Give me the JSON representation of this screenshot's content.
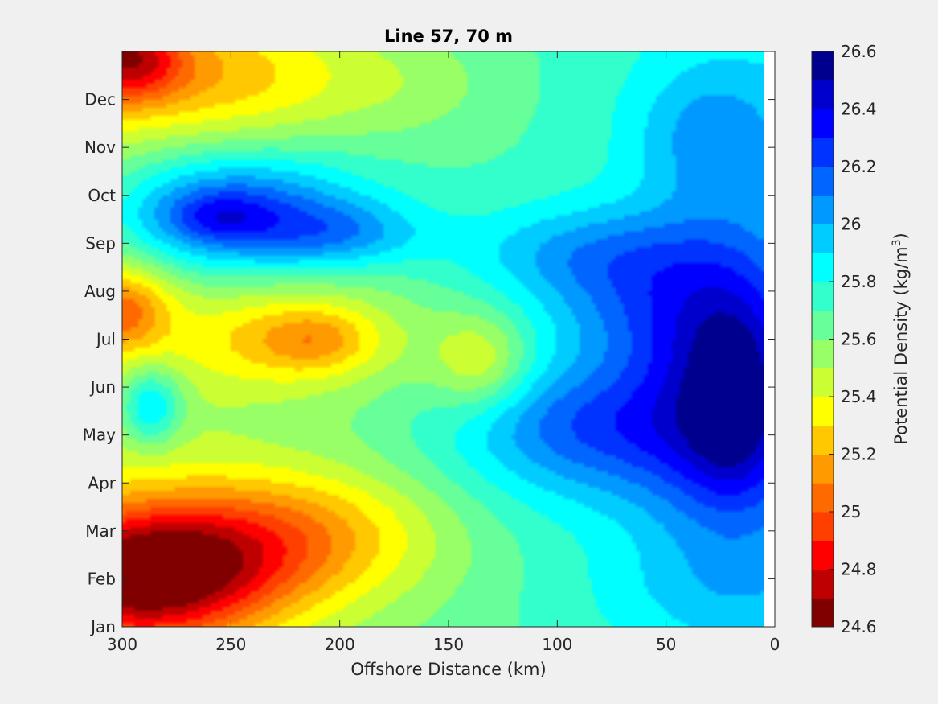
{
  "chart_data": {
    "type": "contourf",
    "title": "Line 57, 70 m",
    "xlabel": "Offshore Distance (km)",
    "ylabel": "",
    "x_reversed": true,
    "xlim": [
      300,
      0
    ],
    "xticks": [
      300,
      250,
      200,
      150,
      100,
      50,
      0
    ],
    "yticks": [
      "Jan",
      "Feb",
      "Mar",
      "Apr",
      "May",
      "Jun",
      "Jul",
      "Aug",
      "Sep",
      "Oct",
      "Nov",
      "Dec"
    ],
    "ylim": [
      0,
      12
    ],
    "data_x_extent": [
      300,
      5
    ],
    "colorbar": {
      "label": "Potential Density (kg/m³)",
      "label_main": "Potential Density (kg/m",
      "label_sup": "3",
      "label_end": ")",
      "range": [
        24.6,
        26.6
      ],
      "ticks": [
        "24.6",
        "24.8",
        "25",
        "25.2",
        "25.4",
        "25.6",
        "25.8",
        "26",
        "26.2",
        "26.4",
        "26.6"
      ],
      "levels": [
        24.6,
        24.7,
        24.8,
        24.9,
        25.0,
        25.1,
        25.2,
        25.3,
        25.4,
        25.5,
        25.6,
        25.7,
        25.8,
        25.9,
        26.0,
        26.1,
        26.2,
        26.3,
        26.4,
        26.5,
        26.6
      ],
      "colors": [
        "#800000",
        "#BF0000",
        "#FF0000",
        "#FF3F00",
        "#FF6A00",
        "#FF9A00",
        "#FFC800",
        "#FFFF00",
        "#CCFF33",
        "#99FF66",
        "#66FF99",
        "#33FFCC",
        "#00FFFF",
        "#00CCFF",
        "#0099FF",
        "#0066FF",
        "#0033FF",
        "#0000FF",
        "#0000CC",
        "#00008F"
      ]
    },
    "features": [
      {
        "x": 297,
        "y": 11.9,
        "v": -0.55,
        "rx": 24,
        "ry": 0.9
      },
      {
        "x": 280,
        "y": 11.6,
        "v": -0.25,
        "rx": 70,
        "ry": 1.2
      },
      {
        "x": 235,
        "y": 11.3,
        "v": -0.12,
        "rx": 60,
        "ry": 1.5
      },
      {
        "x": 165,
        "y": 11.3,
        "v": -0.08,
        "rx": 40,
        "ry": 1.0
      },
      {
        "x": 255,
        "y": 8.55,
        "v": 0.55,
        "rx": 55,
        "ry": 1.2
      },
      {
        "x": 255,
        "y": 8.55,
        "v": 0.2,
        "rx": 22,
        "ry": 0.5
      },
      {
        "x": 200,
        "y": 8.2,
        "v": 0.3,
        "rx": 40,
        "ry": 0.7
      },
      {
        "x": 230,
        "y": 9.2,
        "v": 0.15,
        "rx": 70,
        "ry": 1.2
      },
      {
        "x": 300,
        "y": 6.6,
        "v": -0.45,
        "rx": 22,
        "ry": 0.9
      },
      {
        "x": 220,
        "y": 6.0,
        "v": -0.35,
        "rx": 50,
        "ry": 1.0
      },
      {
        "x": 210,
        "y": 6.0,
        "v": -0.15,
        "rx": 22,
        "ry": 0.6
      },
      {
        "x": 135,
        "y": 5.5,
        "v": -0.3,
        "rx": 22,
        "ry": 1.0
      },
      {
        "x": 287,
        "y": 4.6,
        "v": 0.4,
        "rx": 14,
        "ry": 0.8
      },
      {
        "x": 290,
        "y": 1.0,
        "v": -0.85,
        "rx": 55,
        "ry": 1.4
      },
      {
        "x": 235,
        "y": 1.6,
        "v": -0.4,
        "rx": 70,
        "ry": 1.4
      },
      {
        "x": 215,
        "y": 2.3,
        "v": -0.15,
        "rx": 70,
        "ry": 1.2
      },
      {
        "x": 20,
        "y": 5.0,
        "v": 0.55,
        "rx": 40,
        "ry": 3.0
      },
      {
        "x": 20,
        "y": 4.7,
        "v": 0.25,
        "rx": 18,
        "ry": 1.7
      },
      {
        "x": 60,
        "y": 6.6,
        "v": 0.3,
        "rx": 50,
        "ry": 1.6
      },
      {
        "x": 85,
        "y": 4.3,
        "v": 0.35,
        "rx": 60,
        "ry": 1.2
      },
      {
        "x": 90,
        "y": 7.8,
        "v": 0.25,
        "rx": 60,
        "ry": 1.0
      },
      {
        "x": 30,
        "y": 10.3,
        "v": 0.25,
        "rx": 35,
        "ry": 1.5
      },
      {
        "x": 80,
        "y": 3.3,
        "v": 0.15,
        "rx": 80,
        "ry": 1.4
      },
      {
        "x": 30,
        "y": 0.8,
        "v": 0.12,
        "rx": 60,
        "ry": 1.2
      }
    ],
    "base_value": 25.66
  }
}
